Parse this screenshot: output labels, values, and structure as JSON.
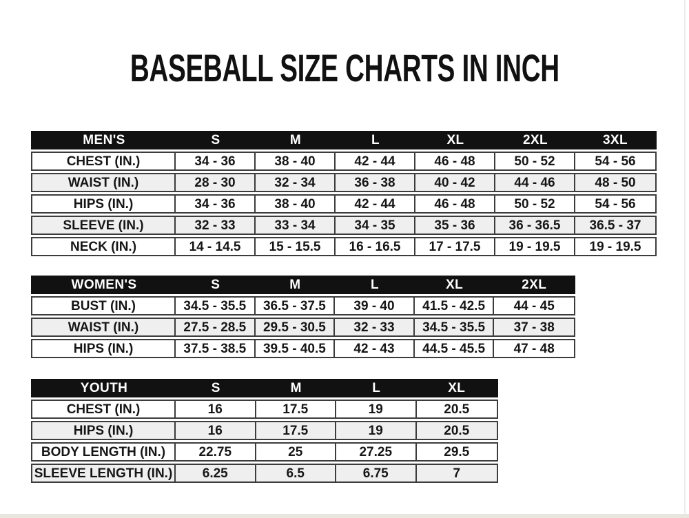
{
  "title": "BASEBALL SIZE CHARTS IN INCH",
  "colors": {
    "header_bg": "#111111",
    "row_stripe": "#efefef",
    "border": "#3c3c3c",
    "text": "#161616"
  },
  "tables": {
    "men": {
      "header": [
        "MEN'S",
        "S",
        "M",
        "L",
        "XL",
        "2XL",
        "3XL"
      ],
      "rows": [
        {
          "label": "CHEST (IN.)",
          "values": [
            "34 - 36",
            "38 - 40",
            "42 - 44",
            "46 - 48",
            "50 - 52",
            "54 - 56"
          ]
        },
        {
          "label": "WAIST (IN.)",
          "values": [
            "28 - 30",
            "32 - 34",
            "36 - 38",
            "40 - 42",
            "44 - 46",
            "48 - 50"
          ]
        },
        {
          "label": "HIPS (IN.)",
          "values": [
            "34 - 36",
            "38 - 40",
            "42 - 44",
            "46 - 48",
            "50 - 52",
            "54 - 56"
          ]
        },
        {
          "label": "SLEEVE (IN.)",
          "values": [
            "32 - 33",
            "33 - 34",
            "34 - 35",
            "35 - 36",
            "36 - 36.5",
            "36.5 - 37"
          ]
        },
        {
          "label": "NECK (IN.)",
          "values": [
            "14 - 14.5",
            "15 - 15.5",
            "16 - 16.5",
            "17 - 17.5",
            "19 - 19.5",
            "19 - 19.5"
          ]
        }
      ]
    },
    "women": {
      "header": [
        "WOMEN'S",
        "S",
        "M",
        "L",
        "XL",
        "2XL"
      ],
      "rows": [
        {
          "label": "BUST (IN.)",
          "values": [
            "34.5 - 35.5",
            "36.5 - 37.5",
            "39 - 40",
            "41.5 - 42.5",
            "44 - 45"
          ]
        },
        {
          "label": "WAIST (IN.)",
          "values": [
            "27.5 - 28.5",
            "29.5 - 30.5",
            "32 - 33",
            "34.5 - 35.5",
            "37 - 38"
          ]
        },
        {
          "label": "HIPS (IN.)",
          "values": [
            "37.5 - 38.5",
            "39.5 - 40.5",
            "42 - 43",
            "44.5 - 45.5",
            "47 - 48"
          ]
        }
      ]
    },
    "youth": {
      "header": [
        "YOUTH",
        "S",
        "M",
        "L",
        "XL"
      ],
      "rows": [
        {
          "label": "CHEST (IN.)",
          "values": [
            "16",
            "17.5",
            "19",
            "20.5"
          ]
        },
        {
          "label": "HIPS (IN.)",
          "values": [
            "16",
            "17.5",
            "19",
            "20.5"
          ]
        },
        {
          "label": "BODY LENGTH (IN.)",
          "values": [
            "22.75",
            "25",
            "27.25",
            "29.5"
          ]
        },
        {
          "label": "SLEEVE LENGTH (IN.)",
          "values": [
            "6.25",
            "6.5",
            "6.75",
            "7"
          ]
        }
      ]
    }
  }
}
